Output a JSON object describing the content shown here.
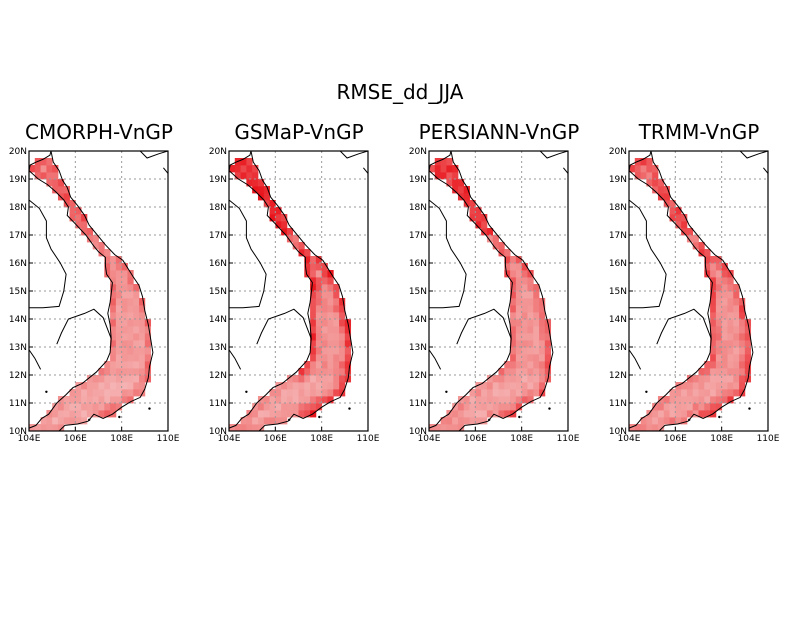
{
  "figure": {
    "title": "RMSE_dd_JJA",
    "lon_range": [
      104,
      110
    ],
    "lat_range": [
      10,
      20
    ],
    "lon_ticks": [
      "104E",
      "106E",
      "108E",
      "110E"
    ],
    "lat_ticks": [
      "10N",
      "11N",
      "12N",
      "13N",
      "14N",
      "15N",
      "16N",
      "17N",
      "18N",
      "19N",
      "20N"
    ],
    "grid": "dotted",
    "colors": {
      "low": "#f7c7c7",
      "mid": "#f28a8a",
      "high": "#e8141b",
      "coast": "#000000"
    }
  },
  "panels": [
    {
      "title": "CMORPH-VnGP",
      "intensity": {
        "north": 0.55,
        "central": 0.35,
        "coast": 0.55,
        "south": 0.25
      }
    },
    {
      "title": "GSMaP-VnGP",
      "intensity": {
        "north": 0.75,
        "central": 0.45,
        "coast": 0.85,
        "south": 0.3
      }
    },
    {
      "title": "PERSIANN-VnGP",
      "intensity": {
        "north": 0.7,
        "central": 0.4,
        "coast": 0.65,
        "south": 0.3
      }
    },
    {
      "title": "TRMM-VnGP",
      "intensity": {
        "north": 0.6,
        "central": 0.4,
        "coast": 0.75,
        "south": 0.35
      }
    }
  ]
}
